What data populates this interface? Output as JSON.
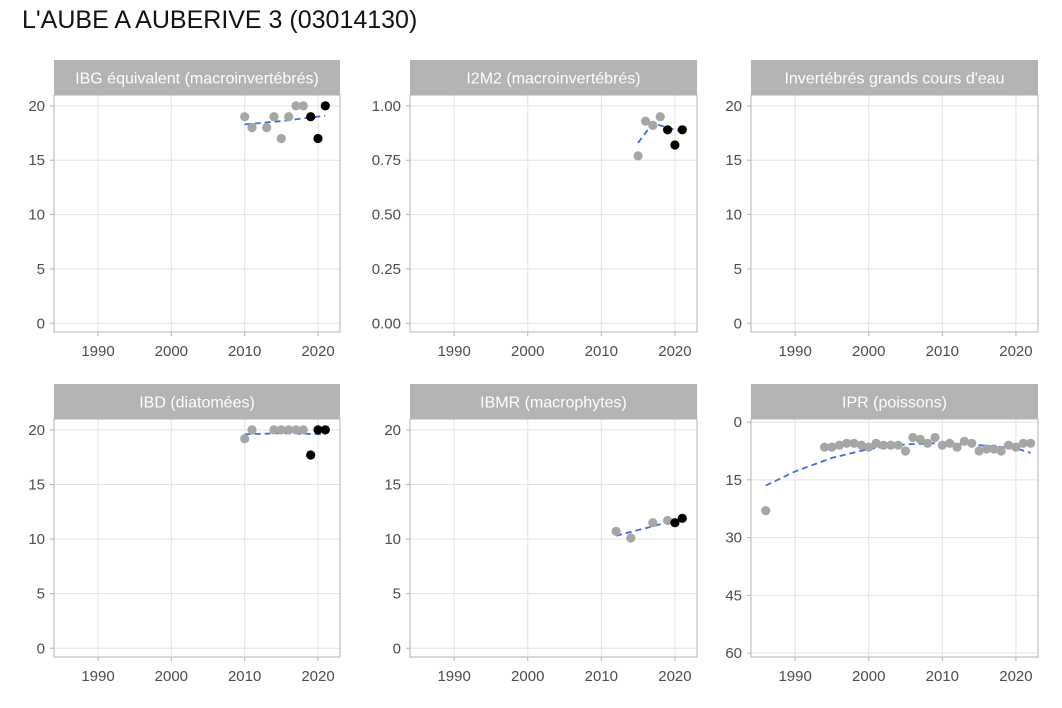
{
  "title": "L'AUBE A AUBERIVE 3 (03014130)",
  "colors": {
    "strip": "#b3b3b3",
    "panel_border": "#b3b3b3",
    "grid": "#e3e3e3",
    "point_old": "#a6a6a6",
    "point_recent": "#000000",
    "trend": "#3f6fdd",
    "tick_text": "#4d4d4d"
  },
  "chart_data": [
    {
      "type": "scatter",
      "title": "IBG équivalent (macroinvertébrés)",
      "xlim": [
        1984,
        2023
      ],
      "xticks": [
        1990,
        2000,
        2010,
        2020
      ],
      "ylim": [
        -0.8,
        21
      ],
      "yticks": [
        0,
        5,
        10,
        15,
        20
      ],
      "ytick_labels": [
        "0",
        "5",
        "10",
        "15",
        "20"
      ],
      "reversed_y": false,
      "points": [
        {
          "x": 2010,
          "y": 19,
          "recent": false
        },
        {
          "x": 2011,
          "y": 18,
          "recent": false
        },
        {
          "x": 2013,
          "y": 18,
          "recent": false
        },
        {
          "x": 2014,
          "y": 19,
          "recent": false
        },
        {
          "x": 2015,
          "y": 17,
          "recent": false
        },
        {
          "x": 2016,
          "y": 19,
          "recent": false
        },
        {
          "x": 2017,
          "y": 20,
          "recent": false
        },
        {
          "x": 2018,
          "y": 20,
          "recent": false
        },
        {
          "x": 2019,
          "y": 19,
          "recent": true
        },
        {
          "x": 2020,
          "y": 17,
          "recent": true
        },
        {
          "x": 2021,
          "y": 20,
          "recent": true
        }
      ],
      "trend": [
        [
          2010,
          18.3
        ],
        [
          2015,
          18.6
        ],
        [
          2021,
          19.1
        ]
      ]
    },
    {
      "type": "scatter",
      "title": "I2M2 (macroinvertébrés)",
      "xlim": [
        1984,
        2023
      ],
      "xticks": [
        1990,
        2000,
        2010,
        2020
      ],
      "ylim": [
        -0.04,
        1.05
      ],
      "yticks": [
        0,
        0.25,
        0.5,
        0.75,
        1
      ],
      "ytick_labels": [
        "0.00",
        "0.25",
        "0.50",
        "0.75",
        "1.00"
      ],
      "reversed_y": false,
      "points": [
        {
          "x": 2015,
          "y": 0.77,
          "recent": false
        },
        {
          "x": 2016,
          "y": 0.93,
          "recent": false
        },
        {
          "x": 2017,
          "y": 0.91,
          "recent": false
        },
        {
          "x": 2018,
          "y": 0.95,
          "recent": false
        },
        {
          "x": 2019,
          "y": 0.89,
          "recent": true
        },
        {
          "x": 2020,
          "y": 0.82,
          "recent": true
        },
        {
          "x": 2021,
          "y": 0.89,
          "recent": true
        }
      ],
      "trend": [
        [
          2015,
          0.83
        ],
        [
          2017,
          0.92
        ],
        [
          2019,
          0.9
        ],
        [
          2021,
          0.88
        ]
      ]
    },
    {
      "type": "scatter",
      "title": "Invertébrés grands cours d'eau",
      "xlim": [
        1984,
        2023
      ],
      "xticks": [
        1990,
        2000,
        2010,
        2020
      ],
      "ylim": [
        -0.8,
        21
      ],
      "yticks": [
        0,
        5,
        10,
        15,
        20
      ],
      "ytick_labels": [
        "0",
        "5",
        "10",
        "15",
        "20"
      ],
      "reversed_y": false,
      "points": [],
      "trend": []
    },
    {
      "type": "scatter",
      "title": "IBD (diatomées)",
      "xlim": [
        1984,
        2023
      ],
      "xticks": [
        1990,
        2000,
        2010,
        2020
      ],
      "ylim": [
        -0.8,
        21
      ],
      "yticks": [
        0,
        5,
        10,
        15,
        20
      ],
      "ytick_labels": [
        "0",
        "5",
        "10",
        "15",
        "20"
      ],
      "reversed_y": false,
      "points": [
        {
          "x": 2010,
          "y": 19.2,
          "recent": false
        },
        {
          "x": 2011,
          "y": 20,
          "recent": false
        },
        {
          "x": 2014,
          "y": 20,
          "recent": false
        },
        {
          "x": 2015,
          "y": 20,
          "recent": false
        },
        {
          "x": 2016,
          "y": 20,
          "recent": false
        },
        {
          "x": 2017,
          "y": 20,
          "recent": false
        },
        {
          "x": 2018,
          "y": 20,
          "recent": false
        },
        {
          "x": 2019,
          "y": 17.7,
          "recent": true
        },
        {
          "x": 2020,
          "y": 20,
          "recent": true
        },
        {
          "x": 2021,
          "y": 20,
          "recent": true
        }
      ],
      "trend": [
        [
          2010,
          19.6
        ],
        [
          2015,
          19.7
        ],
        [
          2021,
          19.6
        ]
      ]
    },
    {
      "type": "scatter",
      "title": "IBMR (macrophytes)",
      "xlim": [
        1984,
        2023
      ],
      "xticks": [
        1990,
        2000,
        2010,
        2020
      ],
      "ylim": [
        -0.8,
        21
      ],
      "yticks": [
        0,
        5,
        10,
        15,
        20
      ],
      "ytick_labels": [
        "0",
        "5",
        "10",
        "15",
        "20"
      ],
      "reversed_y": false,
      "points": [
        {
          "x": 2012,
          "y": 10.7,
          "recent": false
        },
        {
          "x": 2014,
          "y": 10.1,
          "recent": false
        },
        {
          "x": 2017,
          "y": 11.5,
          "recent": false
        },
        {
          "x": 2019,
          "y": 11.7,
          "recent": false
        },
        {
          "x": 2020,
          "y": 11.5,
          "recent": true
        },
        {
          "x": 2021,
          "y": 11.9,
          "recent": true
        }
      ],
      "trend": [
        [
          2012,
          10.3
        ],
        [
          2016,
          11.0
        ],
        [
          2021,
          11.9
        ]
      ]
    },
    {
      "type": "scatter",
      "title": "IPR (poissons)",
      "xlim": [
        1984,
        2023
      ],
      "xticks": [
        1990,
        2000,
        2010,
        2020
      ],
      "ylim": [
        -0.8,
        61
      ],
      "yticks": [
        0,
        15,
        30,
        45,
        60
      ],
      "ytick_labels": [
        "0",
        "15",
        "30",
        "45",
        "60"
      ],
      "reversed_y": true,
      "points": [
        {
          "x": 1986,
          "y": 23,
          "recent": false
        },
        {
          "x": 1994,
          "y": 6.5,
          "recent": false
        },
        {
          "x": 1995,
          "y": 6.5,
          "recent": false
        },
        {
          "x": 1996,
          "y": 6,
          "recent": false
        },
        {
          "x": 1997,
          "y": 5.5,
          "recent": false
        },
        {
          "x": 1998,
          "y": 5.5,
          "recent": false
        },
        {
          "x": 1999,
          "y": 6,
          "recent": false
        },
        {
          "x": 2000,
          "y": 6.5,
          "recent": false
        },
        {
          "x": 2001,
          "y": 5.5,
          "recent": false
        },
        {
          "x": 2002,
          "y": 6,
          "recent": false
        },
        {
          "x": 2003,
          "y": 6,
          "recent": false
        },
        {
          "x": 2004,
          "y": 6,
          "recent": false
        },
        {
          "x": 2005,
          "y": 7.5,
          "recent": false
        },
        {
          "x": 2006,
          "y": 4,
          "recent": false
        },
        {
          "x": 2007,
          "y": 4.5,
          "recent": false
        },
        {
          "x": 2008,
          "y": 5.5,
          "recent": false
        },
        {
          "x": 2009,
          "y": 4,
          "recent": false
        },
        {
          "x": 2010,
          "y": 6,
          "recent": false
        },
        {
          "x": 2011,
          "y": 5.5,
          "recent": false
        },
        {
          "x": 2012,
          "y": 6.5,
          "recent": false
        },
        {
          "x": 2013,
          "y": 5,
          "recent": false
        },
        {
          "x": 2014,
          "y": 5.5,
          "recent": false
        },
        {
          "x": 2015,
          "y": 7.5,
          "recent": false
        },
        {
          "x": 2016,
          "y": 7,
          "recent": false
        },
        {
          "x": 2017,
          "y": 7,
          "recent": false
        },
        {
          "x": 2018,
          "y": 7.5,
          "recent": false
        },
        {
          "x": 2019,
          "y": 6,
          "recent": false
        },
        {
          "x": 2020,
          "y": 6.5,
          "recent": false
        },
        {
          "x": 2021,
          "y": 5.5,
          "recent": false
        },
        {
          "x": 2022,
          "y": 5.5,
          "recent": false
        }
      ],
      "trend": [
        [
          1986,
          16.5
        ],
        [
          1990,
          12.8
        ],
        [
          1995,
          9.3
        ],
        [
          2000,
          7.0
        ],
        [
          2005,
          5.8
        ],
        [
          2010,
          5.4
        ],
        [
          2015,
          6.0
        ],
        [
          2020,
          6.8
        ],
        [
          2022,
          8.0
        ]
      ]
    }
  ]
}
